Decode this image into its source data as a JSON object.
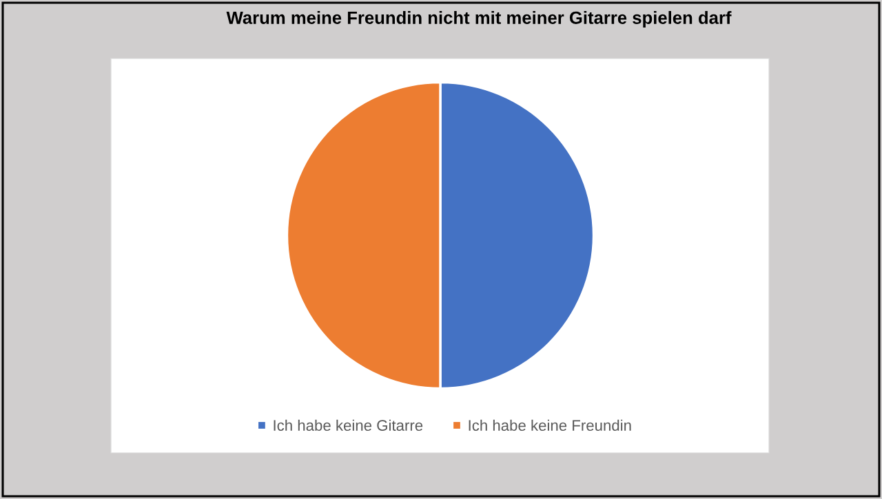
{
  "chart_data": {
    "type": "pie",
    "title": "Warum meine Freundin nicht mit meiner Gitarre spielen darf",
    "categories": [
      "Ich habe keine Gitarre",
      "Ich habe keine Freundin"
    ],
    "values": [
      50,
      50
    ],
    "colors": [
      "#4472c4",
      "#ed7d31"
    ],
    "legend": "bottom"
  }
}
